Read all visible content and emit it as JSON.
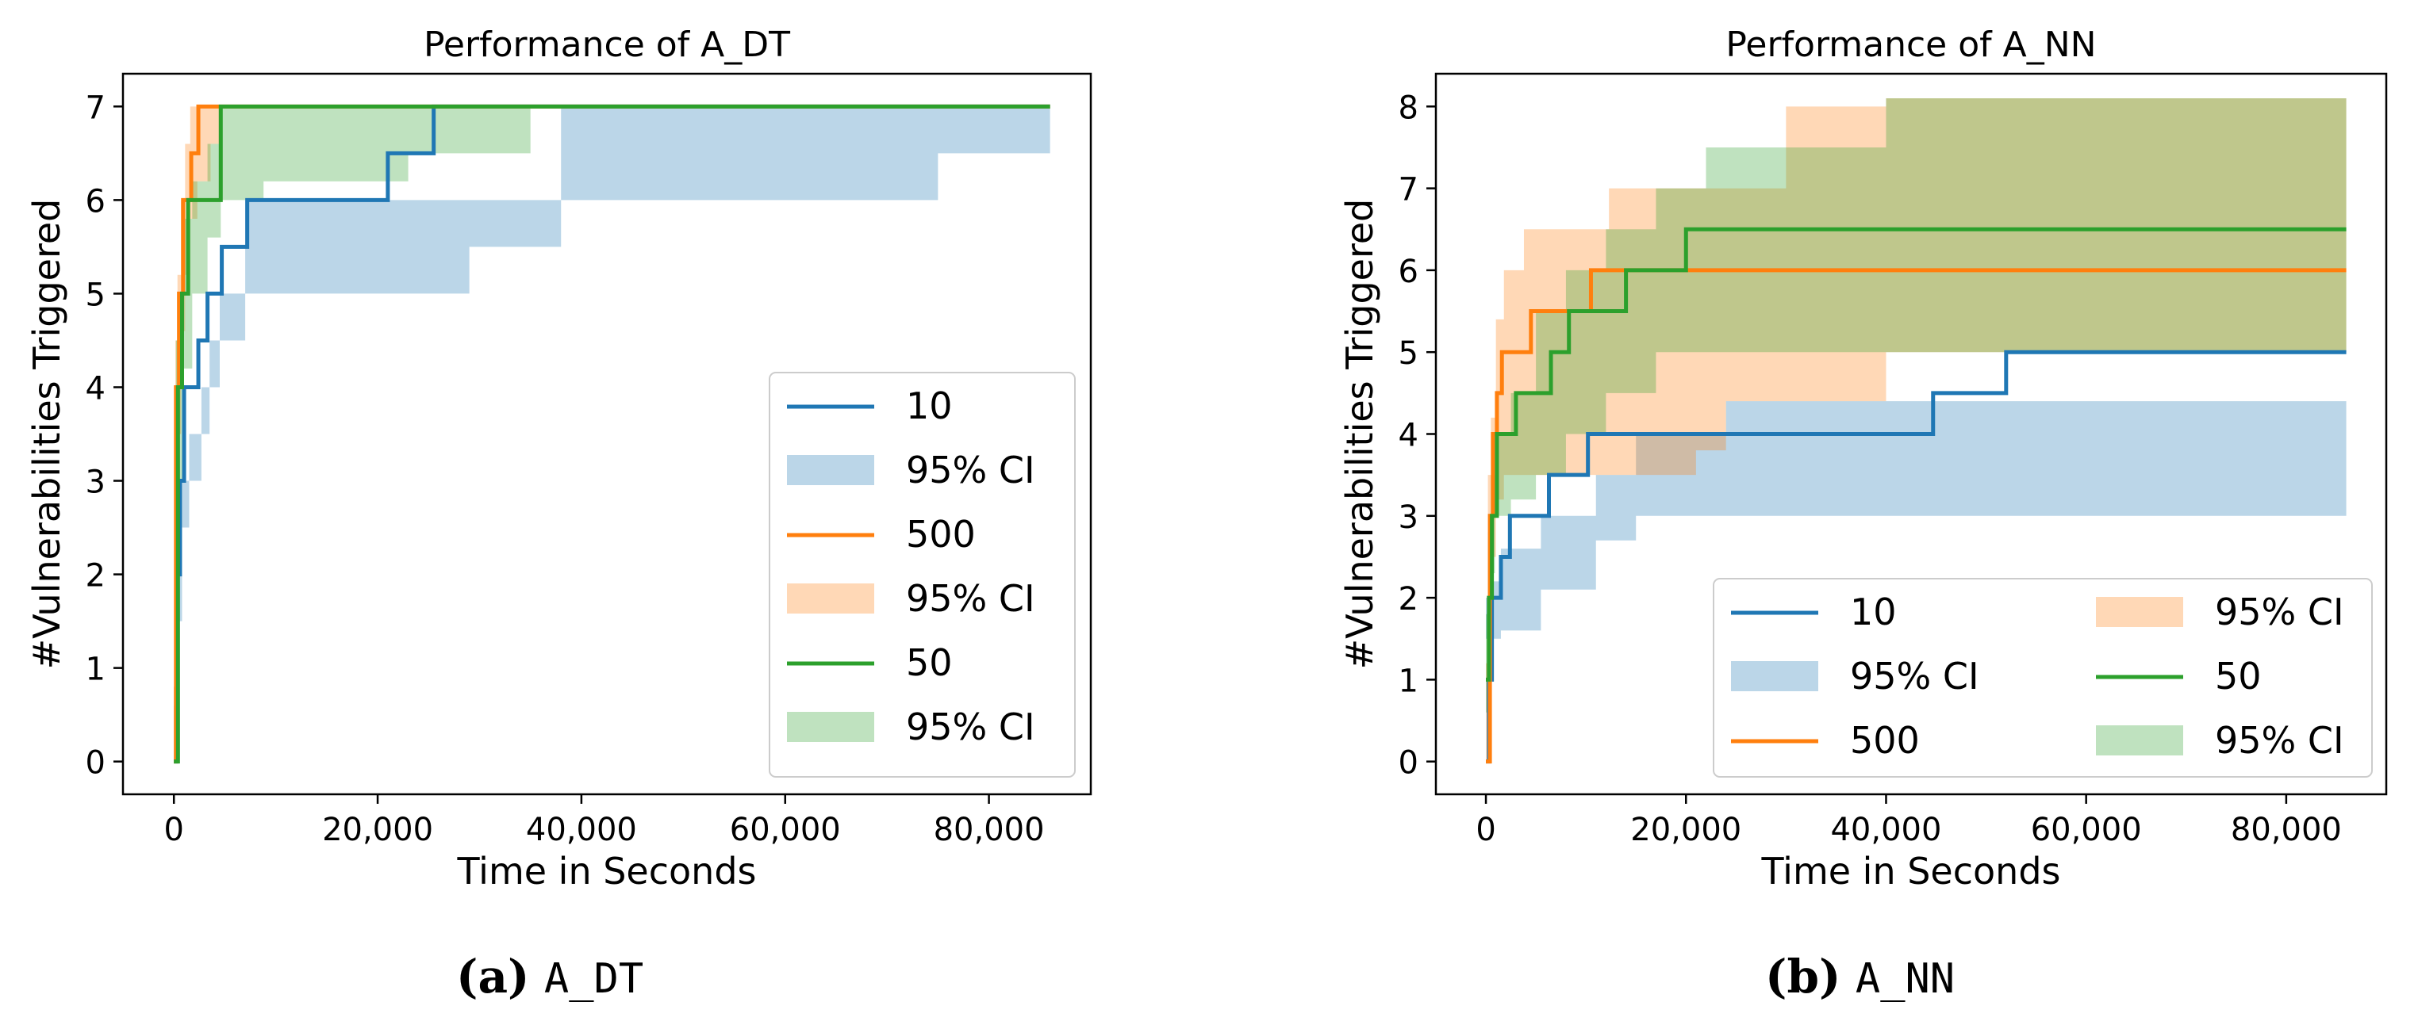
{
  "chart_data": [
    {
      "type": "line",
      "title": "Performance of A_DT",
      "xlabel": "Time in Seconds",
      "ylabel": "#Vulnerabilities Triggered",
      "xlim": [
        -5000,
        90000
      ],
      "ylim": [
        -0.35,
        7.35
      ],
      "xticks": [
        0,
        20000,
        40000,
        60000,
        80000
      ],
      "xtick_labels": [
        "0",
        "20,000",
        "40,000",
        "60,000",
        "80,000"
      ],
      "yticks": [
        0,
        1,
        2,
        3,
        4,
        5,
        6,
        7
      ],
      "ytick_labels": [
        "0",
        "1",
        "2",
        "3",
        "4",
        "5",
        "6",
        "7"
      ],
      "legend_position": "lower-right",
      "legend_columns": 1,
      "series": [
        {
          "name": "10",
          "color": "#1f77b4",
          "line": [
            [
              0,
              0
            ],
            [
              300,
              2
            ],
            [
              600,
              3
            ],
            [
              1000,
              4
            ],
            [
              2400,
              4.5
            ],
            [
              3300,
              5
            ],
            [
              4700,
              5.5
            ],
            [
              7200,
              6
            ],
            [
              21000,
              6.5
            ],
            [
              25500,
              7
            ],
            [
              86000,
              7
            ]
          ],
          "ci": [
            [
              0,
              0,
              0.6
            ],
            [
              200,
              0.6,
              1.5
            ],
            [
              400,
              1.5,
              2.5
            ],
            [
              800,
              2.5,
              3
            ],
            [
              1500,
              3,
              3.5
            ],
            [
              2700,
              3.5,
              4
            ],
            [
              3500,
              4,
              4.5
            ],
            [
              4500,
              4.5,
              5
            ],
            [
              7000,
              5,
              6
            ],
            [
              29000,
              5.5,
              6
            ],
            [
              38000,
              6,
              7
            ],
            [
              75000,
              6.5,
              7
            ],
            [
              86000,
              6.6,
              7
            ]
          ]
        },
        {
          "name": "500",
          "color": "#ff7f0e",
          "line": [
            [
              0,
              0
            ],
            [
              200,
              4
            ],
            [
              500,
              5
            ],
            [
              900,
              6
            ],
            [
              1700,
              6.5
            ],
            [
              2400,
              7
            ],
            [
              86000,
              7
            ]
          ],
          "ci": [
            [
              0,
              0,
              0.8
            ],
            [
              150,
              2,
              4.5
            ],
            [
              350,
              3.5,
              5.2
            ],
            [
              700,
              4.6,
              6
            ],
            [
              1100,
              5.2,
              6.6
            ],
            [
              1600,
              5.8,
              7
            ],
            [
              2300,
              6.2,
              7
            ],
            [
              3600,
              6.6,
              7
            ],
            [
              4600,
              7,
              7
            ]
          ]
        },
        {
          "name": "50",
          "color": "#2ca02c",
          "line": [
            [
              0,
              0
            ],
            [
              400,
              4
            ],
            [
              800,
              5
            ],
            [
              1400,
              6
            ],
            [
              4600,
              7
            ],
            [
              86000,
              7
            ]
          ],
          "ci": [
            [
              0,
              0,
              0.8
            ],
            [
              200,
              2,
              4.5
            ],
            [
              500,
              3,
              5
            ],
            [
              900,
              4.2,
              5.8
            ],
            [
              1800,
              5,
              6.2
            ],
            [
              3300,
              5.6,
              6.6
            ],
            [
              4600,
              6,
              7
            ],
            [
              8800,
              6.2,
              7
            ],
            [
              23000,
              6.5,
              7
            ],
            [
              35000,
              7,
              7
            ]
          ]
        }
      ],
      "legend_entries": [
        "10",
        "95% CI",
        "500",
        "95% CI",
        "50",
        "95% CI"
      ]
    },
    {
      "type": "line",
      "title": "Performance of A_NN",
      "xlabel": "Time in Seconds",
      "ylabel": "#Vulnerabilities Triggered",
      "xlim": [
        -5000,
        90000
      ],
      "ylim": [
        -0.4,
        8.4
      ],
      "xticks": [
        0,
        20000,
        40000,
        60000,
        80000
      ],
      "xtick_labels": [
        "0",
        "20,000",
        "40,000",
        "60,000",
        "80,000"
      ],
      "yticks": [
        0,
        1,
        2,
        3,
        4,
        5,
        6,
        7,
        8
      ],
      "ytick_labels": [
        "0",
        "1",
        "2",
        "3",
        "4",
        "5",
        "6",
        "7",
        "8"
      ],
      "legend_position": "lower-right",
      "legend_columns": 2,
      "series": [
        {
          "name": "10",
          "color": "#1f77b4",
          "line": [
            [
              0,
              0
            ],
            [
              300,
              1
            ],
            [
              600,
              2
            ],
            [
              1500,
              2.5
            ],
            [
              2400,
              3
            ],
            [
              6300,
              3.5
            ],
            [
              10200,
              4
            ],
            [
              44700,
              4.5
            ],
            [
              52000,
              5
            ],
            [
              86000,
              5
            ]
          ],
          "ci": [
            [
              0,
              1.5,
              2
            ],
            [
              500,
              1.5,
              2.2
            ],
            [
              1500,
              1.6,
              2.6
            ],
            [
              5500,
              2.1,
              3
            ],
            [
              11000,
              2.7,
              3.5
            ],
            [
              15000,
              3,
              4
            ],
            [
              24000,
              3,
              4.4
            ],
            [
              86000,
              3,
              4.4
            ]
          ]
        },
        {
          "name": "500",
          "color": "#ff7f0e",
          "line": [
            [
              0,
              0
            ],
            [
              400,
              3
            ],
            [
              700,
              4
            ],
            [
              1100,
              4.5
            ],
            [
              1600,
              5
            ],
            [
              4500,
              5.5
            ],
            [
              10500,
              6
            ],
            [
              86000,
              6
            ]
          ],
          "ci": [
            [
              0,
              0,
              1.2
            ],
            [
              200,
              1.5,
              3.5
            ],
            [
              500,
              2.5,
              4.2
            ],
            [
              1000,
              3.2,
              5.4
            ],
            [
              1800,
              3.5,
              6
            ],
            [
              3800,
              3.5,
              6.5
            ],
            [
              8400,
              3.5,
              6.5
            ],
            [
              12300,
              3.5,
              7
            ],
            [
              21000,
              3.8,
              7
            ],
            [
              24000,
              4.4,
              7
            ],
            [
              30000,
              4.4,
              8
            ],
            [
              40000,
              5,
              8.1
            ],
            [
              86000,
              5,
              8.1
            ]
          ]
        },
        {
          "name": "50",
          "color": "#2ca02c",
          "line": [
            [
              0,
              1
            ],
            [
              300,
              2
            ],
            [
              600,
              3
            ],
            [
              1100,
              4
            ],
            [
              3000,
              4.5
            ],
            [
              6500,
              5
            ],
            [
              8300,
              5.5
            ],
            [
              14000,
              6
            ],
            [
              20000,
              6.5
            ],
            [
              86000,
              6.5
            ]
          ],
          "ci": [
            [
              0,
              0.6,
              1.8
            ],
            [
              200,
              1.6,
              2.8
            ],
            [
              500,
              2.3,
              3.5
            ],
            [
              900,
              3,
              4
            ],
            [
              2500,
              3.2,
              4.5
            ],
            [
              5000,
              3.5,
              5.5
            ],
            [
              8000,
              4,
              6
            ],
            [
              12000,
              4.5,
              6.5
            ],
            [
              17000,
              5,
              7
            ],
            [
              22000,
              5,
              7.5
            ],
            [
              40000,
              5,
              8.1
            ],
            [
              67000,
              5,
              8.1
            ],
            [
              86000,
              5,
              8.1
            ]
          ]
        }
      ],
      "legend_entries": [
        "10",
        "95% CI",
        "500",
        "95% CI",
        "50",
        "95% CI"
      ]
    }
  ],
  "captions": [
    {
      "label": "(a)",
      "code": "A_DT"
    },
    {
      "label": "(b)",
      "code": "A_NN"
    }
  ]
}
